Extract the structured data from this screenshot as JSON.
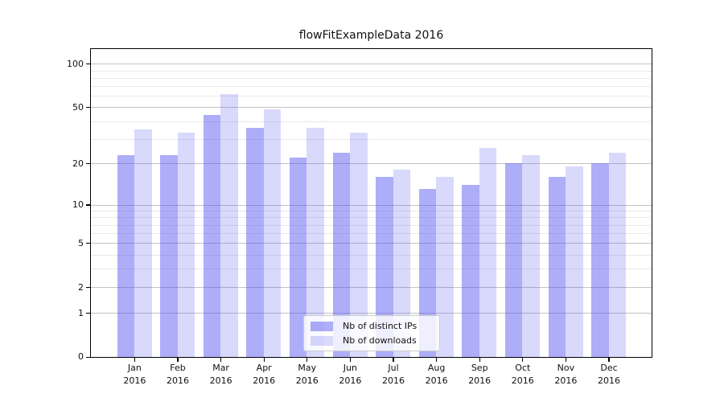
{
  "colors": {
    "background": "#ffffff",
    "spine": "#000000",
    "text": "#111111",
    "grid_major": "#c3c3c3",
    "grid_minor": "#e9e9e9",
    "bar_distinct_ips": "rgba(80,80,240,0.47)",
    "bar_downloads": "rgba(80,80,240,0.22)"
  },
  "chart_data": {
    "type": "bar",
    "title": "flowFitExampleData 2016",
    "xlabel": "",
    "ylabel": "",
    "categories": [
      "Jan",
      "Feb",
      "Mar",
      "Apr",
      "May",
      "Jun",
      "Jul",
      "Aug",
      "Sep",
      "Oct",
      "Nov",
      "Dec"
    ],
    "year_label": "2016",
    "series": [
      {
        "name": "Nb of distinct IPs",
        "color": "rgba(80,80,240,0.47)",
        "values": [
          23,
          23,
          44,
          36,
          22,
          24,
          16,
          13,
          14,
          20,
          16,
          20
        ]
      },
      {
        "name": "Nb of downloads",
        "color": "rgba(80,80,240,0.22)",
        "values": [
          35,
          33,
          62,
          48,
          36,
          33,
          18,
          16,
          26,
          23,
          19,
          24
        ]
      }
    ],
    "y_scale": "log-like: position proportional to log10(1+value), baseline at 0",
    "y_major_ticks": [
      0,
      1,
      2,
      5,
      10,
      20,
      50,
      100
    ],
    "y_minor_gridlines": [
      3,
      4,
      6,
      7,
      8,
      9,
      30,
      40,
      60,
      70,
      80,
      90
    ],
    "ylim": [
      0,
      126
    ],
    "grid": "on",
    "legend_position": "lower center"
  }
}
